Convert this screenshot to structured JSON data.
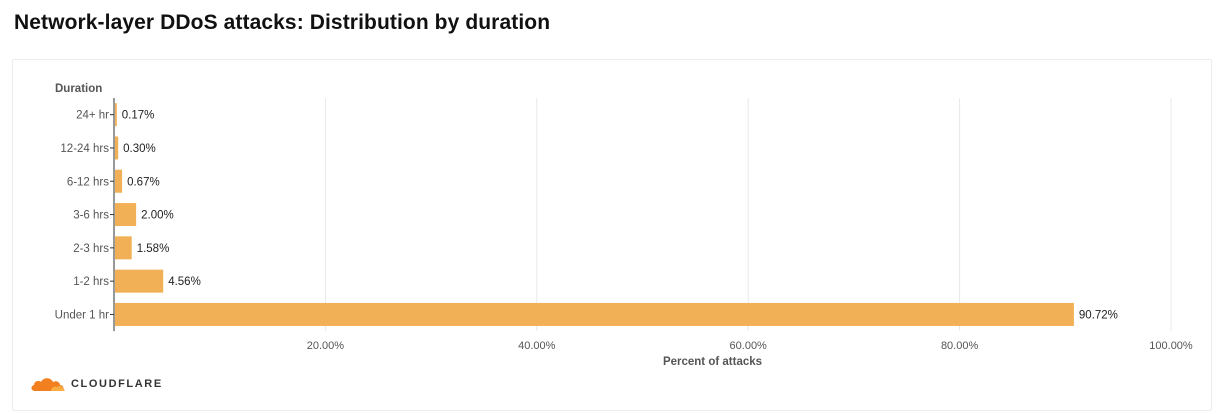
{
  "page": {
    "title": "Network-layer DDoS attacks: Distribution by duration",
    "brand": "CLOUDFLARE"
  },
  "colors": {
    "bar": "#F2B056",
    "grid": "#e8e8e8",
    "axis": "#333333",
    "tick_text": "#555555",
    "cloud_dark": "#F38020",
    "cloud_light": "#FBAD41"
  },
  "chart_data": {
    "type": "bar",
    "orientation": "horizontal",
    "title": "Network-layer DDoS attacks: Distribution by duration",
    "ylabel": "Duration",
    "xlabel": "Percent of attacks",
    "categories": [
      "24+ hr",
      "12-24 hrs",
      "6-12 hrs",
      "3-6 hrs",
      "2-3 hrs",
      "1-2 hrs",
      "Under 1 hr"
    ],
    "values": [
      0.17,
      0.3,
      0.67,
      2.0,
      1.58,
      4.56,
      90.72
    ],
    "value_labels": [
      "0.17%",
      "0.30%",
      "0.67%",
      "2.00%",
      "1.58%",
      "4.56%",
      "90.72%"
    ],
    "xlim": [
      0,
      100
    ],
    "xticks": [
      20,
      40,
      60,
      80,
      100
    ],
    "xtick_labels": [
      "20.00%",
      "40.00%",
      "60.00%",
      "80.00%",
      "100.00%"
    ],
    "grid": true,
    "legend": "none"
  }
}
